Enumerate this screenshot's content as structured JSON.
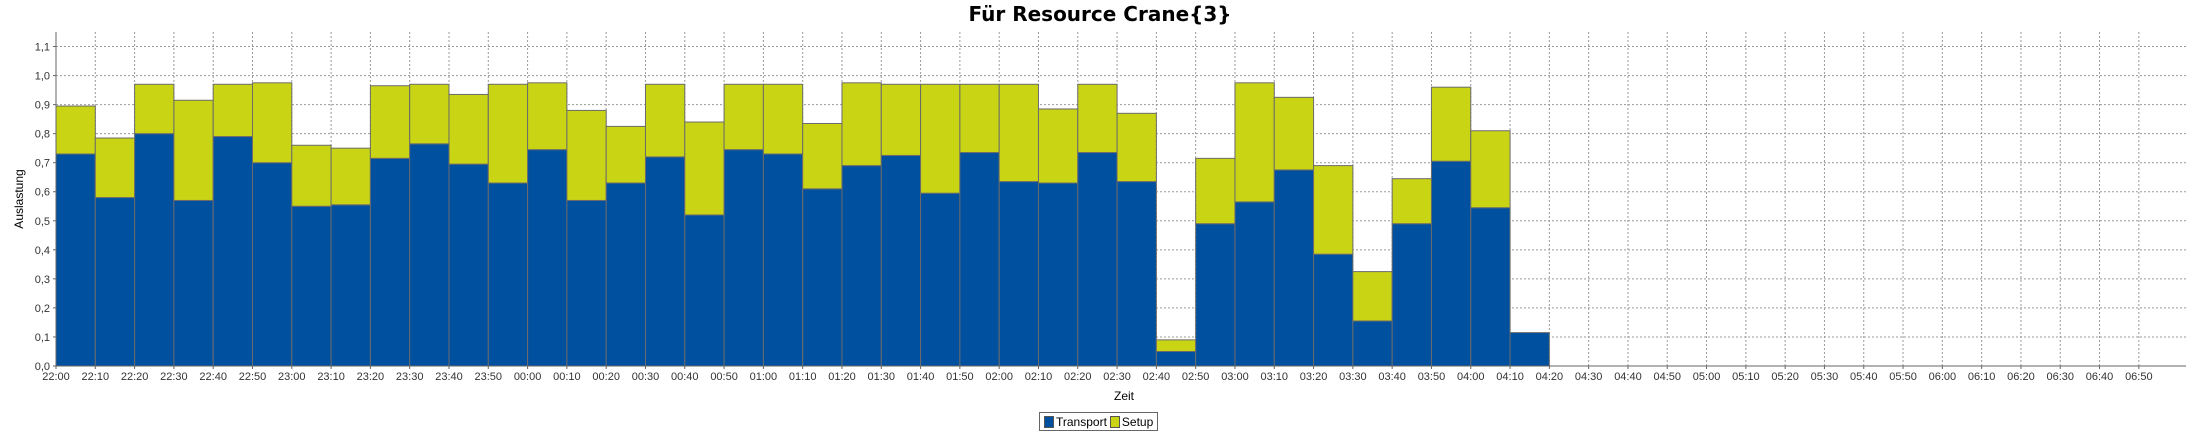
{
  "chart_data": {
    "type": "bar",
    "stacked": true,
    "title": "Für Resource Crane{3}",
    "xlabel": "Zeit",
    "ylabel": "Auslastung",
    "ylim": [
      0,
      1.15
    ],
    "yticks": [
      "0,0",
      "0,1",
      "0,2",
      "0,3",
      "0,4",
      "0,5",
      "0,6",
      "0,7",
      "0,8",
      "0,9",
      "1,0",
      "1,1"
    ],
    "grid": true,
    "legend": "bottom-center",
    "categories": [
      "22:00",
      "22:10",
      "22:20",
      "22:30",
      "22:40",
      "22:50",
      "23:00",
      "23:10",
      "23:20",
      "23:30",
      "23:40",
      "23:50",
      "00:00",
      "00:10",
      "00:20",
      "00:30",
      "00:40",
      "00:50",
      "01:00",
      "01:10",
      "01:20",
      "01:30",
      "01:40",
      "01:50",
      "02:00",
      "02:10",
      "02:20",
      "02:30",
      "02:40",
      "02:50",
      "03:00",
      "03:10",
      "03:20",
      "03:30",
      "03:40",
      "03:50",
      "04:00",
      "04:10",
      "04:20",
      "04:30",
      "04:40",
      "04:50",
      "05:00",
      "05:10",
      "05:20",
      "05:30",
      "05:40",
      "05:50",
      "06:00",
      "06:10",
      "06:20",
      "06:30",
      "06:40",
      "06:50"
    ],
    "series": [
      {
        "name": "Transport",
        "color": "#0050A0",
        "values": [
          0.73,
          0.58,
          0.8,
          0.57,
          0.79,
          0.7,
          0.55,
          0.555,
          0.715,
          0.765,
          0.695,
          0.63,
          0.745,
          0.57,
          0.63,
          0.72,
          0.52,
          0.745,
          0.73,
          0.61,
          0.69,
          0.725,
          0.595,
          0.735,
          0.635,
          0.63,
          0.735,
          0.635,
          0.05,
          0.49,
          0.565,
          0.675,
          0.385,
          0.155,
          0.49,
          0.705,
          0.545,
          0.115,
          0,
          0,
          0,
          0,
          0,
          0,
          0,
          0,
          0,
          0,
          0,
          0,
          0,
          0,
          0,
          0
        ]
      },
      {
        "name": "Setup",
        "color": "#C8D414",
        "values": [
          0.165,
          0.205,
          0.17,
          0.345,
          0.18,
          0.275,
          0.21,
          0.195,
          0.25,
          0.205,
          0.24,
          0.34,
          0.23,
          0.31,
          0.195,
          0.25,
          0.32,
          0.225,
          0.24,
          0.225,
          0.285,
          0.245,
          0.375,
          0.235,
          0.335,
          0.255,
          0.235,
          0.235,
          0.04,
          0.225,
          0.41,
          0.25,
          0.305,
          0.17,
          0.155,
          0.255,
          0.265,
          0,
          0,
          0,
          0,
          0,
          0,
          0,
          0,
          0,
          0,
          0,
          0,
          0,
          0,
          0,
          0,
          0
        ]
      }
    ]
  }
}
